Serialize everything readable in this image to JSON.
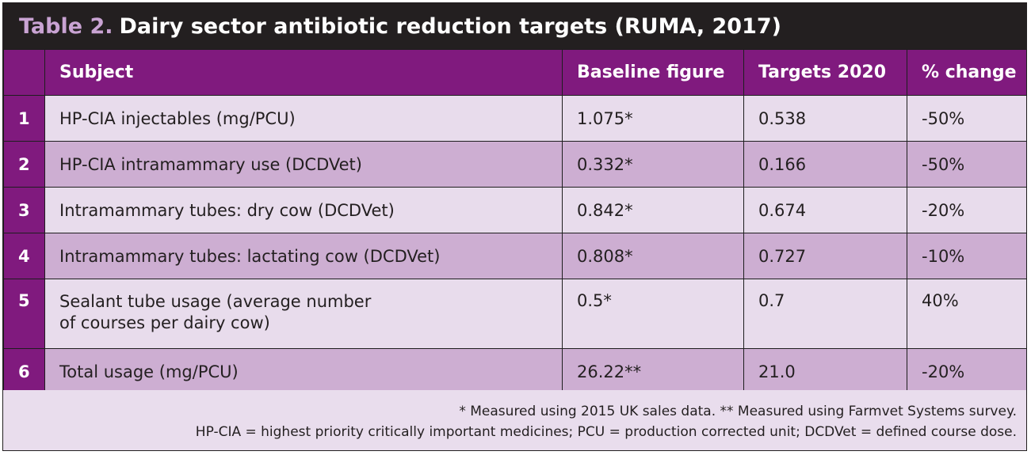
{
  "title": {
    "number": "Table 2.",
    "text": "Dairy sector antibiotic reduction targets (RUMA, 2017)"
  },
  "columns": [
    "",
    "Subject",
    "Baseline figure",
    "Targets 2020",
    "% change"
  ],
  "rows": [
    {
      "index": "1",
      "subject": "HP-CIA injectables (mg/PCU)",
      "baseline": "1.075*",
      "target": "0.538",
      "change": "-50%"
    },
    {
      "index": "2",
      "subject": "HP-CIA intramammary use (DCDVet)",
      "baseline": "0.332*",
      "target": "0.166",
      "change": "-50%"
    },
    {
      "index": "3",
      "subject": "Intramammary tubes: dry cow (DCDVet)",
      "baseline": "0.842*",
      "target": "0.674",
      "change": "-20%"
    },
    {
      "index": "4",
      "subject": "Intramammary tubes: lactating cow (DCDVet)",
      "baseline": "0.808*",
      "target": "0.727",
      "change": "-10%"
    },
    {
      "index": "5",
      "subject_line1": "Sealant tube usage (average number",
      "subject_line2": "of courses per dairy cow)",
      "baseline": "0.5*",
      "target": "0.7",
      "change": "40%"
    },
    {
      "index": "6",
      "subject": "Total usage (mg/PCU)",
      "baseline": "26.22**",
      "target": "21.0",
      "change": "-20%"
    }
  ],
  "notes": {
    "line1": "* Measured using 2015 UK sales data. ** Measured using Farmvet Systems survey.",
    "line2": "HP-CIA = highest priority critically important medicines; PCU = production corrected unit; DCDVet = defined course dose."
  },
  "colors": {
    "header_purple": "#801a7e",
    "title_bar": "#231f20",
    "row_light": "#e8dcec",
    "row_dark": "#cdaed2",
    "title_accent": "#c9a3d3"
  }
}
